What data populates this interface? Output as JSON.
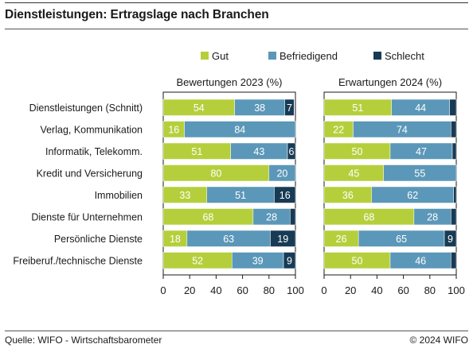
{
  "header": {
    "title": "Dienstleistungen: Ertragslage nach Branchen"
  },
  "footer": {
    "source": "Quelle: WIFO - Wirtschaftsbarometer",
    "copyright": "© 2024 WIFO"
  },
  "colors": {
    "gut": "#b5cf3c",
    "befriedigend": "#5b97b8",
    "schlecht": "#183b55"
  },
  "chart_data": {
    "type": "bar",
    "orientation": "horizontal",
    "stacked": true,
    "legend": [
      "Gut",
      "Befriedigend",
      "Schlecht"
    ],
    "legend_position": "top",
    "categories": [
      "Dienstleistungen (Schnitt)",
      "Verlag, Kommunikation",
      "Informatik, Telekomm.",
      "Kredit und Versicherung",
      "Immobilien",
      "Dienste für Unternehmen",
      "Persönliche Dienste",
      "Freiberuf./technische Dienste"
    ],
    "xlim": [
      0,
      100
    ],
    "xticks": [
      "0",
      "20",
      "40",
      "60",
      "80",
      "100"
    ],
    "grid": false,
    "panels": [
      {
        "title": "Bewertungen 2023 (%)",
        "series": [
          {
            "name": "Gut",
            "values": [
              54,
              16,
              51,
              80,
              33,
              68,
              18,
              52
            ],
            "labels": [
              "54",
              "16",
              "51",
              "80",
              "33",
              "68",
              "18",
              "52"
            ]
          },
          {
            "name": "Befriedigend",
            "values": [
              38,
              84,
              43,
              20,
              51,
              28,
              63,
              39
            ],
            "labels": [
              "38",
              "84",
              "43",
              "20",
              "51",
              "28",
              "63",
              "39"
            ]
          },
          {
            "name": "Schlecht",
            "values": [
              7,
              0,
              6,
              0,
              16,
              4,
              19,
              9
            ],
            "labels": [
              "7",
              "",
              "6",
              "",
              "16",
              "",
              "19",
              "9"
            ]
          }
        ]
      },
      {
        "title": "Erwartungen 2024 (%)",
        "series": [
          {
            "name": "Gut",
            "values": [
              51,
              22,
              50,
              45,
              36,
              68,
              26,
              50
            ],
            "labels": [
              "51",
              "22",
              "50",
              "45",
              "36",
              "68",
              "26",
              "50"
            ]
          },
          {
            "name": "Befriedigend",
            "values": [
              44,
              74,
              47,
              55,
              62,
              28,
              65,
              46
            ],
            "labels": [
              "44",
              "74",
              "47",
              "55",
              "62",
              "28",
              "65",
              "46"
            ]
          },
          {
            "name": "Schlecht",
            "values": [
              5,
              4,
              3,
              0,
              2,
              4,
              9,
              4
            ],
            "labels": [
              "",
              "",
              "",
              "",
              "",
              "",
              "9",
              ""
            ]
          }
        ]
      }
    ]
  }
}
